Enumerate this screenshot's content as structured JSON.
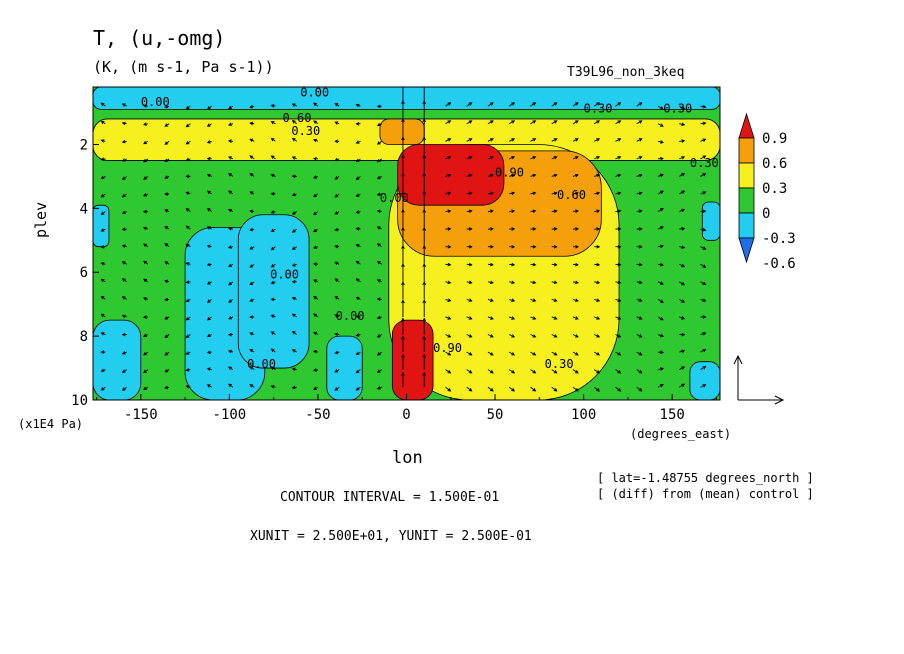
{
  "title": "T, (u,-omg)",
  "subtitle": "(K, (m s-1, Pa s-1))",
  "run_label": "T39L96_non_3keq",
  "y_unit_label": "(x1E4 Pa)",
  "x_unit_label": "(degrees_east)",
  "xlabel": "lon",
  "ylabel": "plev",
  "lat_note": "[ lat=-1.48755 degrees_north ]",
  "diff_note": "[ (diff) from (mean) control ]",
  "contour_note": "CONTOUR INTERVAL = 1.500E-01",
  "unit_note": "XUNIT = 2.500E+01, YUNIT = 2.500E-01",
  "colors": {
    "c_m06": "#1e6ee6",
    "c_m03": "#22cdf0",
    "c_0": "#30c830",
    "c_03": "#f5f01e",
    "c_06": "#f5a00a",
    "c_09": "#e11414"
  },
  "chart_data": {
    "type": "heatmap",
    "x_ticks": [
      "-150",
      "-100",
      "-50",
      "0",
      "50",
      "100",
      "150"
    ],
    "x_tick_values": [
      -150,
      -100,
      -50,
      0,
      50,
      100,
      150
    ],
    "xlim": [
      -177,
      177
    ],
    "y_ticks": [
      "2",
      "4",
      "6",
      "8",
      "10"
    ],
    "y_tick_values": [
      2,
      4,
      6,
      8,
      10
    ],
    "ylim": [
      10,
      0.2
    ],
    "colorbar": {
      "labels": [
        "0.9",
        "0.6",
        "0.3",
        "0",
        "-0.3",
        "-0.6"
      ],
      "levels": [
        0.9,
        0.6,
        0.3,
        0,
        -0.3,
        -0.6
      ]
    },
    "contour_labels": [
      {
        "text": "0.00",
        "lon": -150,
        "p": 0.8
      },
      {
        "text": "0.00",
        "lon": -60,
        "p": 0.5
      },
      {
        "text": "0.60",
        "lon": -70,
        "p": 1.3
      },
      {
        "text": "0.30",
        "lon": -65,
        "p": 1.7
      },
      {
        "text": "0.90",
        "lon": 50,
        "p": 3.0
      },
      {
        "text": "0.60",
        "lon": 85,
        "p": 3.7
      },
      {
        "text": "0.30",
        "lon": 160,
        "p": 2.7
      },
      {
        "text": "0.30",
        "lon": 100,
        "p": 1.0
      },
      {
        "text": "0.30",
        "lon": 145,
        "p": 1.0
      },
      {
        "text": "0.30",
        "lon": 78,
        "p": 9.0
      },
      {
        "text": "0.00",
        "lon": -77,
        "p": 6.2
      },
      {
        "text": "0.00",
        "lon": -40,
        "p": 7.5
      },
      {
        "text": "0.00",
        "lon": -90,
        "p": 9.0
      },
      {
        "text": "0.00",
        "lon": -15,
        "p": 3.8
      },
      {
        "text": "0.90",
        "lon": 15,
        "p": 8.5
      }
    ],
    "regions": [
      {
        "level": 0,
        "description": "background"
      },
      {
        "level": -0.3,
        "lon": [
          -177,
          -168
        ],
        "p": [
          3.9,
          5.2
        ]
      },
      {
        "level": -0.3,
        "lon": [
          -177,
          -150
        ],
        "p": [
          7.5,
          10
        ]
      },
      {
        "level": -0.3,
        "lon": [
          -125,
          -80
        ],
        "p": [
          4.6,
          10
        ]
      },
      {
        "level": -0.3,
        "lon": [
          -95,
          -55
        ],
        "p": [
          4.2,
          9.0
        ]
      },
      {
        "level": -0.3,
        "lon": [
          -45,
          -25
        ],
        "p": [
          8.0,
          10
        ]
      },
      {
        "level": -0.3,
        "lon": [
          167,
          177
        ],
        "p": [
          3.8,
          5.0
        ]
      },
      {
        "level": -0.3,
        "lon": [
          160,
          177
        ],
        "p": [
          8.8,
          10
        ]
      },
      {
        "level": -0.3,
        "lon": [
          -177,
          177
        ],
        "p": [
          0.2,
          0.9
        ]
      },
      {
        "level": 0.3,
        "lon": [
          -177,
          177
        ],
        "p": [
          1.2,
          2.5
        ]
      },
      {
        "level": 0.3,
        "lon": [
          -10,
          120
        ],
        "p": [
          2.0,
          10
        ]
      },
      {
        "level": 0.6,
        "lon": [
          -5,
          110
        ],
        "p": [
          2.2,
          5.5
        ]
      },
      {
        "level": 0.6,
        "lon": [
          -15,
          10
        ],
        "p": [
          1.2,
          2.0
        ]
      },
      {
        "level": 0.9,
        "lon": [
          -5,
          55
        ],
        "p": [
          2.0,
          3.9
        ]
      },
      {
        "level": 0.9,
        "lon": [
          -8,
          15
        ],
        "p": [
          7.5,
          10
        ]
      }
    ]
  }
}
